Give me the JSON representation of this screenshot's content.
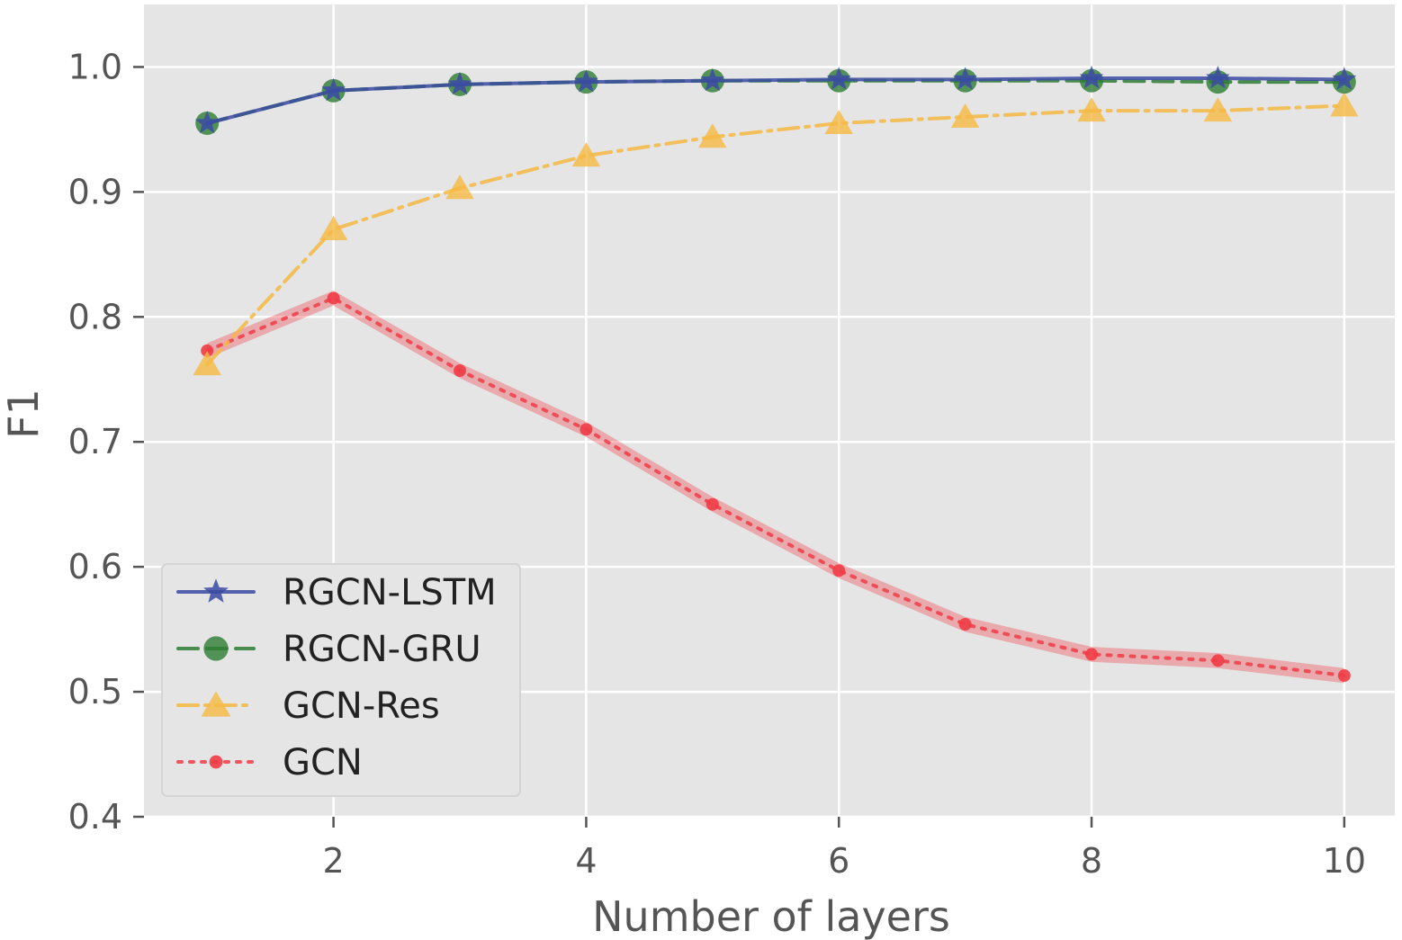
{
  "chart_data": {
    "type": "line",
    "title": "",
    "xlabel": "Number of layers",
    "ylabel": "F1",
    "xlim": [
      0.5,
      10.4
    ],
    "ylim": [
      0.4,
      1.05
    ],
    "xticks": [
      2,
      4,
      6,
      8,
      10
    ],
    "xtick_labels": [
      "2",
      "4",
      "6",
      "8",
      "10"
    ],
    "yticks": [
      0.4,
      0.5,
      0.6,
      0.7,
      0.8,
      0.9,
      1.0
    ],
    "ytick_labels": [
      "0.4",
      "0.5",
      "0.6",
      "0.7",
      "0.8",
      "0.9",
      "1.0"
    ],
    "grid": true,
    "legend_position": "lower-left",
    "x": [
      1,
      2,
      3,
      4,
      5,
      6,
      7,
      8,
      9,
      10
    ],
    "series": [
      {
        "name": "RGCN-LSTM",
        "values": [
          0.955,
          0.981,
          0.986,
          0.988,
          0.989,
          0.99,
          0.99,
          0.991,
          0.991,
          0.99
        ],
        "color": "#3b4ba3",
        "marker": "star",
        "dash": "solid",
        "band": 0.0
      },
      {
        "name": "RGCN-GRU",
        "values": [
          0.955,
          0.981,
          0.986,
          0.988,
          0.989,
          0.989,
          0.989,
          0.989,
          0.988,
          0.988
        ],
        "color": "#2e7d32",
        "marker": "circle",
        "dash": "dashed",
        "band": 0.0
      },
      {
        "name": "GCN-Res",
        "values": [
          0.762,
          0.87,
          0.903,
          0.929,
          0.944,
          0.955,
          0.96,
          0.965,
          0.965,
          0.969
        ],
        "color": "#f5b942",
        "marker": "triangle",
        "dash": "dashdot",
        "band": 0.0
      },
      {
        "name": "GCN",
        "values": [
          0.773,
          0.815,
          0.757,
          0.71,
          0.65,
          0.597,
          0.554,
          0.53,
          0.525,
          0.513
        ],
        "color": "#f03c46",
        "marker": "dot",
        "dash": "dotted",
        "band": 0.006
      }
    ]
  }
}
